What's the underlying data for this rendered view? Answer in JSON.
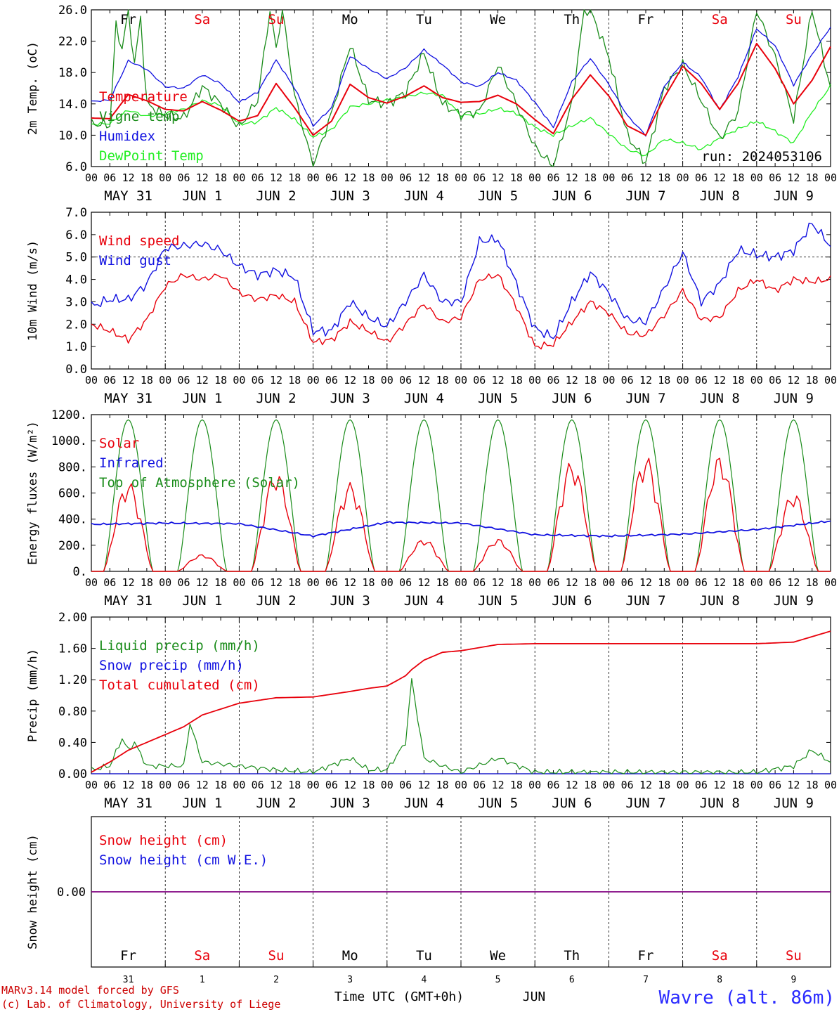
{
  "colors": {
    "red": "#e8000b",
    "green": "#1a8c1a",
    "blue": "#1010e0",
    "lightgreen": "#22ee22",
    "purple": "#800080",
    "station": "#2b2bff"
  },
  "x_axis": {
    "hour_labels": [
      "00",
      "06",
      "12",
      "18"
    ],
    "end_label": "00",
    "date_labels": [
      "MAY 31",
      "JUN  1",
      "JUN  2",
      "JUN  3",
      "JUN  4",
      "JUN  5",
      "JUN  6",
      "JUN  7",
      "JUN  8",
      "JUN  9"
    ],
    "day_names": [
      {
        "label": "Fr",
        "color": "black"
      },
      {
        "label": "Sa",
        "color": "red"
      },
      {
        "label": "Su",
        "color": "red"
      },
      {
        "label": "Mo",
        "color": "black"
      },
      {
        "label": "Tu",
        "color": "black"
      },
      {
        "label": "We",
        "color": "black"
      },
      {
        "label": "Th",
        "color": "black"
      },
      {
        "label": "Fr",
        "color": "black"
      },
      {
        "label": "Sa",
        "color": "red"
      },
      {
        "label": "Su",
        "color": "red"
      }
    ],
    "day_numbers": [
      "31",
      "1",
      "2",
      "3",
      "4",
      "5",
      "6",
      "7",
      "8",
      "9"
    ],
    "time_label": "Time UTC (GMT+0h)",
    "month_label": "JUN"
  },
  "footer": {
    "credit_line1": "MARv3.14 model forced by GFS",
    "credit_line2": "(c) Lab. of Climatology, University of Liege",
    "station": "Wavre (alt. 86m)"
  },
  "chart_data": [
    {
      "type": "line",
      "ylabel": "2m Temp. (oC)",
      "ylim": [
        6,
        26
      ],
      "yticks": [
        "6.0",
        "10.0",
        "14.0",
        "18.0",
        "22.0",
        "26.0"
      ],
      "run_label": "run: 2024053106",
      "x_unit": "hours since 2024-05-31 00 UTC",
      "series": [
        {
          "name": "Temperature",
          "color": "red",
          "x": [
            0,
            6,
            12,
            18,
            24,
            30,
            36,
            42,
            48,
            54,
            60,
            66,
            72,
            78,
            84,
            90,
            96,
            102,
            108,
            114,
            120,
            126,
            132,
            138,
            144,
            150,
            156,
            162,
            168,
            174,
            180,
            186,
            192,
            198,
            204,
            210,
            216,
            222,
            228,
            234,
            240
          ],
          "y": [
            12.2,
            12.1,
            15.2,
            14.4,
            13.3,
            13.1,
            14.3,
            13.2,
            11.8,
            12.5,
            16.6,
            13.5,
            10.0,
            11.8,
            16.5,
            14.8,
            14.1,
            15.0,
            16.3,
            14.8,
            14.2,
            14.3,
            15.1,
            14.0,
            12.0,
            10.2,
            14.6,
            17.7,
            15.0,
            11.2,
            10.0,
            14.8,
            18.8,
            16.6,
            13.3,
            16.6,
            21.7,
            18.5,
            14.0,
            17.0,
            21.3
          ]
        },
        {
          "name": "Vigne temp",
          "color": "green",
          "x": [
            0,
            6,
            8,
            10,
            12,
            14,
            16,
            18,
            24,
            30,
            36,
            42,
            48,
            54,
            58,
            60,
            62,
            66,
            72,
            78,
            84,
            90,
            96,
            102,
            108,
            114,
            120,
            126,
            132,
            138,
            144,
            150,
            156,
            160,
            162,
            168,
            174,
            180,
            186,
            192,
            198,
            204,
            210,
            216,
            222,
            228,
            234,
            240
          ],
          "y": [
            11.5,
            11.3,
            24.0,
            21.0,
            26.0,
            19.0,
            25.0,
            14.0,
            12.5,
            12.2,
            16.2,
            14.0,
            11.0,
            14.5,
            26.0,
            21.0,
            26.0,
            15.0,
            6.0,
            12.8,
            21.5,
            14.5,
            14.0,
            15.5,
            20.5,
            14.0,
            12.6,
            13.0,
            19.0,
            14.0,
            8.5,
            6.0,
            14.0,
            26.0,
            26.0,
            20.0,
            10.0,
            6.5,
            16.0,
            19.0,
            14.5,
            9.5,
            13.0,
            26.0,
            20.0,
            12.0,
            26.0,
            16.0
          ]
        },
        {
          "name": "Humidex",
          "color": "blue",
          "x": [
            0,
            6,
            12,
            18,
            24,
            30,
            36,
            42,
            48,
            54,
            60,
            66,
            72,
            78,
            84,
            90,
            96,
            102,
            108,
            114,
            120,
            126,
            132,
            138,
            144,
            150,
            156,
            162,
            168,
            174,
            180,
            186,
            192,
            198,
            204,
            210,
            216,
            222,
            228,
            234,
            240
          ],
          "y": [
            14.3,
            14.5,
            19.5,
            18.4,
            16.2,
            16.0,
            17.7,
            16.6,
            14.2,
            15.5,
            19.6,
            16.0,
            11.2,
            13.5,
            20.1,
            18.5,
            17.2,
            18.6,
            20.9,
            19.0,
            16.8,
            16.2,
            18.0,
            17.0,
            14.2,
            11.0,
            16.8,
            19.8,
            16.5,
            12.5,
            10.0,
            16.2,
            19.3,
            17.4,
            13.2,
            17.5,
            23.6,
            21.4,
            16.4,
            20.3,
            23.8
          ]
        },
        {
          "name": "DewPoint Temp",
          "color": "lightgreen",
          "x": [
            0,
            6,
            12,
            18,
            24,
            30,
            36,
            42,
            48,
            54,
            60,
            66,
            72,
            78,
            84,
            90,
            96,
            102,
            108,
            114,
            120,
            126,
            132,
            138,
            144,
            150,
            156,
            162,
            168,
            174,
            180,
            186,
            192,
            198,
            204,
            210,
            216,
            222,
            228,
            234,
            240
          ],
          "y": [
            11.4,
            11.5,
            13.2,
            12.4,
            12.8,
            13.3,
            14.4,
            13.8,
            11.4,
            11.7,
            13.5,
            12.0,
            9.8,
            10.7,
            13.6,
            14.0,
            14.5,
            14.9,
            15.4,
            15.1,
            12.5,
            12.7,
            13.4,
            12.8,
            11.0,
            10.0,
            11.2,
            12.2,
            10.2,
            8.2,
            7.4,
            9.5,
            9.0,
            8.2,
            9.6,
            10.8,
            11.8,
            10.5,
            9.0,
            13.0,
            16.3
          ]
        }
      ]
    },
    {
      "type": "line",
      "ylabel": "10m Wind (m/s)",
      "ylim": [
        0,
        7
      ],
      "yticks": [
        "0.0",
        "1.0",
        "2.0",
        "3.0",
        "4.0",
        "5.0",
        "6.0",
        "7.0"
      ],
      "reference_line": 5,
      "series": [
        {
          "name": "Wind speed",
          "color": "red",
          "x": [
            0,
            6,
            12,
            18,
            24,
            30,
            36,
            42,
            48,
            54,
            60,
            66,
            72,
            78,
            84,
            90,
            96,
            102,
            108,
            114,
            120,
            126,
            132,
            138,
            144,
            150,
            156,
            162,
            168,
            174,
            180,
            186,
            192,
            198,
            204,
            210,
            216,
            222,
            228,
            234,
            240
          ],
          "y": [
            2.0,
            1.7,
            1.3,
            2.2,
            3.7,
            4.2,
            4.0,
            4.2,
            3.4,
            3.1,
            3.3,
            3.0,
            1.2,
            1.3,
            2.1,
            1.7,
            1.2,
            2.0,
            2.9,
            2.1,
            2.3,
            4.0,
            4.2,
            2.8,
            1.0,
            1.1,
            2.1,
            3.0,
            2.5,
            1.6,
            1.5,
            2.4,
            3.5,
            2.2,
            2.3,
            3.5,
            4.0,
            3.5,
            4.0,
            3.9,
            4.0
          ]
        },
        {
          "name": "Wind gust",
          "color": "blue",
          "x": [
            0,
            6,
            12,
            18,
            24,
            30,
            36,
            42,
            48,
            54,
            60,
            66,
            72,
            78,
            84,
            90,
            96,
            102,
            108,
            114,
            120,
            126,
            132,
            138,
            144,
            150,
            156,
            162,
            168,
            174,
            180,
            186,
            192,
            198,
            204,
            210,
            216,
            222,
            228,
            234,
            240
          ],
          "y": [
            2.8,
            3.1,
            3.1,
            3.8,
            5.4,
            5.5,
            5.6,
            5.3,
            4.6,
            4.2,
            4.4,
            4.1,
            1.7,
            1.7,
            3.0,
            2.3,
            1.9,
            3.0,
            4.2,
            3.0,
            3.0,
            5.7,
            5.8,
            3.8,
            1.8,
            1.4,
            3.0,
            4.3,
            3.4,
            2.2,
            2.1,
            3.6,
            5.2,
            3.0,
            3.8,
            5.3,
            5.1,
            5.0,
            5.3,
            6.5,
            5.5
          ]
        }
      ]
    },
    {
      "type": "line",
      "ylabel": "Energy fluxes (W/m²)",
      "ylim": [
        0,
        1200
      ],
      "yticks": [
        "0.",
        "200.",
        "400.",
        "600.",
        "800.",
        "1000.",
        "1200."
      ],
      "series": [
        {
          "name": "Solar",
          "color": "red",
          "daily_peaks": [
            690,
            130,
            770,
            680,
            250,
            250,
            850,
            890,
            890,
            610
          ]
        },
        {
          "name": "Infrared",
          "color": "blue",
          "x": [
            0,
            24,
            48,
            72,
            96,
            120,
            144,
            168,
            192,
            216,
            240
          ],
          "y": [
            360,
            370,
            365,
            270,
            375,
            370,
            280,
            270,
            285,
            320,
            385
          ]
        },
        {
          "name": "Top of Atmosphere (Solar)",
          "color": "green",
          "daily_peak": 1160
        }
      ]
    },
    {
      "type": "line",
      "ylabel": "Precip (mm/h)",
      "ylim": [
        0,
        2
      ],
      "yticks": [
        "0.00",
        "0.40",
        "0.80",
        "1.20",
        "1.60",
        "2.00"
      ],
      "series": [
        {
          "name": "Liquid precip (mm/h)",
          "color": "green",
          "x": [
            0,
            6,
            10,
            12,
            14,
            18,
            24,
            30,
            32,
            36,
            48,
            60,
            72,
            84,
            90,
            96,
            102,
            104,
            108,
            114,
            120,
            132,
            144,
            168,
            192,
            216,
            228,
            234,
            240
          ],
          "y": [
            0.05,
            0.1,
            0.45,
            0.3,
            0.4,
            0.1,
            0.1,
            0.1,
            0.65,
            0.15,
            0.1,
            0.05,
            0.02,
            0.2,
            0.05,
            0.05,
            0.4,
            1.2,
            0.2,
            0.1,
            0.02,
            0.2,
            0.02,
            0.02,
            0.02,
            0.02,
            0.1,
            0.3,
            0.15
          ]
        },
        {
          "name": "Snow precip (mm/h)",
          "color": "blue",
          "x": [
            0,
            240
          ],
          "y": [
            0,
            0
          ]
        },
        {
          "name": "Total cumulated (cm)",
          "color": "red",
          "x": [
            0,
            6,
            12,
            18,
            24,
            30,
            36,
            48,
            60,
            72,
            84,
            90,
            96,
            102,
            104,
            108,
            114,
            120,
            132,
            144,
            168,
            192,
            216,
            228,
            234,
            240
          ],
          "y": [
            0.02,
            0.15,
            0.3,
            0.4,
            0.5,
            0.6,
            0.75,
            0.9,
            0.97,
            0.98,
            1.05,
            1.09,
            1.12,
            1.25,
            1.33,
            1.45,
            1.55,
            1.57,
            1.65,
            1.66,
            1.66,
            1.66,
            1.66,
            1.68,
            1.75,
            1.82
          ]
        }
      ]
    },
    {
      "type": "line",
      "ylabel": "Snow height (cm)",
      "yticks": [
        "0.00"
      ],
      "series": [
        {
          "name": "Snow height (cm)",
          "color": "red",
          "x": [
            0,
            240
          ],
          "y": [
            0,
            0
          ]
        },
        {
          "name": "Snow height (cm W.E.)",
          "color": "blue",
          "x": [
            0,
            240
          ],
          "y": [
            0,
            0
          ]
        }
      ]
    }
  ]
}
